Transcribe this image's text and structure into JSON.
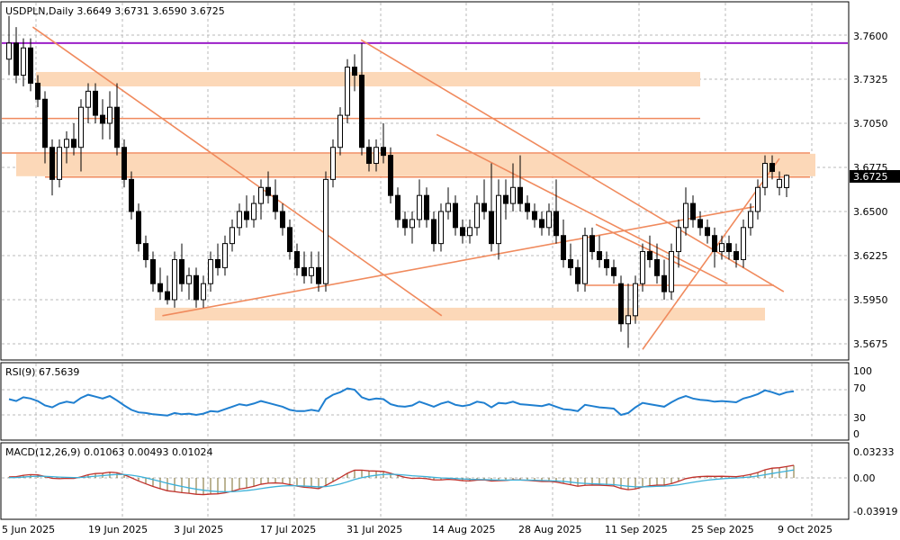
{
  "header": {
    "symbol_line": "USDPLN,Daily  3.6649 3.6731 3.6590 3.6725"
  },
  "price_axis": {
    "ticks": [
      "3.7600",
      "3.7325",
      "3.7050",
      "3.6775",
      "3.6500",
      "3.6225",
      "3.5950",
      "3.5675"
    ],
    "current_price": "3.6725"
  },
  "rsi": {
    "label": "RSI(9) 67.5639",
    "levels": [
      "100",
      "70",
      "30",
      "0"
    ]
  },
  "macd": {
    "label": "MACD(12,26,9) 0.01063 0.00493 0.01024",
    "levels": [
      "0.03233",
      "0.00",
      "-0.03919"
    ]
  },
  "date_axis": {
    "labels": [
      "5 Jun 2025",
      "19 Jun 2025",
      "3 Jul 2025",
      "17 Jul 2025",
      "31 Jul 2025",
      "14 Aug 2025",
      "28 Aug 2025",
      "11 Sep 2025",
      "25 Sep 2025",
      "9 Oct 2025"
    ]
  },
  "colors": {
    "bull": "#ffffff",
    "bear": "#000000",
    "resistance": "#9b1ec8",
    "trendline": "#f08a5d",
    "zone": "#fcd8b8",
    "rsi_line": "#1f7fd0",
    "macd_main": "#c0302a",
    "macd_signal": "#3bb0d8",
    "macd_hist": "#7a6a2a"
  },
  "chart_data": {
    "type": "candlestick",
    "instrument": "USDPLN",
    "timeframe": "Daily",
    "ylim": [
      3.5575,
      3.77
    ],
    "grid": true,
    "candles": [
      {
        "o": 3.745,
        "h": 3.772,
        "l": 3.735,
        "c": 3.755
      },
      {
        "o": 3.755,
        "h": 3.765,
        "l": 3.73,
        "c": 3.735
      },
      {
        "o": 3.735,
        "h": 3.758,
        "l": 3.728,
        "c": 3.752
      },
      {
        "o": 3.752,
        "h": 3.758,
        "l": 3.725,
        "c": 3.73
      },
      {
        "o": 3.73,
        "h": 3.735,
        "l": 3.715,
        "c": 3.72
      },
      {
        "o": 3.72,
        "h": 3.725,
        "l": 3.68,
        "c": 3.69
      },
      {
        "o": 3.69,
        "h": 3.695,
        "l": 3.66,
        "c": 3.67
      },
      {
        "o": 3.67,
        "h": 3.695,
        "l": 3.665,
        "c": 3.69
      },
      {
        "o": 3.69,
        "h": 3.7,
        "l": 3.68,
        "c": 3.695
      },
      {
        "o": 3.695,
        "h": 3.705,
        "l": 3.685,
        "c": 3.69
      },
      {
        "o": 3.69,
        "h": 3.72,
        "l": 3.675,
        "c": 3.715
      },
      {
        "o": 3.715,
        "h": 3.73,
        "l": 3.705,
        "c": 3.725
      },
      {
        "o": 3.725,
        "h": 3.73,
        "l": 3.705,
        "c": 3.71
      },
      {
        "o": 3.71,
        "h": 3.72,
        "l": 3.695,
        "c": 3.705
      },
      {
        "o": 3.705,
        "h": 3.725,
        "l": 3.695,
        "c": 3.715
      },
      {
        "o": 3.715,
        "h": 3.73,
        "l": 3.685,
        "c": 3.69
      },
      {
        "o": 3.69,
        "h": 3.695,
        "l": 3.665,
        "c": 3.67
      },
      {
        "o": 3.67,
        "h": 3.675,
        "l": 3.645,
        "c": 3.65
      },
      {
        "o": 3.65,
        "h": 3.655,
        "l": 3.625,
        "c": 3.63
      },
      {
        "o": 3.63,
        "h": 3.635,
        "l": 3.615,
        "c": 3.62
      },
      {
        "o": 3.62,
        "h": 3.625,
        "l": 3.6,
        "c": 3.605
      },
      {
        "o": 3.605,
        "h": 3.615,
        "l": 3.595,
        "c": 3.6
      },
      {
        "o": 3.6,
        "h": 3.61,
        "l": 3.592,
        "c": 3.595
      },
      {
        "o": 3.595,
        "h": 3.625,
        "l": 3.59,
        "c": 3.62
      },
      {
        "o": 3.62,
        "h": 3.63,
        "l": 3.6,
        "c": 3.605
      },
      {
        "o": 3.605,
        "h": 3.615,
        "l": 3.595,
        "c": 3.61
      },
      {
        "o": 3.61,
        "h": 3.615,
        "l": 3.59,
        "c": 3.595
      },
      {
        "o": 3.595,
        "h": 3.61,
        "l": 3.59,
        "c": 3.605
      },
      {
        "o": 3.605,
        "h": 3.625,
        "l": 3.6,
        "c": 3.62
      },
      {
        "o": 3.62,
        "h": 3.63,
        "l": 3.61,
        "c": 3.615
      },
      {
        "o": 3.615,
        "h": 3.635,
        "l": 3.61,
        "c": 3.63
      },
      {
        "o": 3.63,
        "h": 3.645,
        "l": 3.625,
        "c": 3.64
      },
      {
        "o": 3.64,
        "h": 3.655,
        "l": 3.635,
        "c": 3.65
      },
      {
        "o": 3.65,
        "h": 3.66,
        "l": 3.64,
        "c": 3.645
      },
      {
        "o": 3.645,
        "h": 3.66,
        "l": 3.64,
        "c": 3.655
      },
      {
        "o": 3.655,
        "h": 3.67,
        "l": 3.645,
        "c": 3.665
      },
      {
        "o": 3.665,
        "h": 3.675,
        "l": 3.655,
        "c": 3.66
      },
      {
        "o": 3.66,
        "h": 3.67,
        "l": 3.645,
        "c": 3.65
      },
      {
        "o": 3.65,
        "h": 3.655,
        "l": 3.635,
        "c": 3.64
      },
      {
        "o": 3.64,
        "h": 3.645,
        "l": 3.62,
        "c": 3.625
      },
      {
        "o": 3.625,
        "h": 3.63,
        "l": 3.61,
        "c": 3.615
      },
      {
        "o": 3.615,
        "h": 3.625,
        "l": 3.605,
        "c": 3.61
      },
      {
        "o": 3.61,
        "h": 3.625,
        "l": 3.605,
        "c": 3.615
      },
      {
        "o": 3.615,
        "h": 3.625,
        "l": 3.6,
        "c": 3.605
      },
      {
        "o": 3.605,
        "h": 3.675,
        "l": 3.6,
        "c": 3.67
      },
      {
        "o": 3.67,
        "h": 3.695,
        "l": 3.665,
        "c": 3.69
      },
      {
        "o": 3.69,
        "h": 3.715,
        "l": 3.685,
        "c": 3.71
      },
      {
        "o": 3.71,
        "h": 3.745,
        "l": 3.705,
        "c": 3.74
      },
      {
        "o": 3.74,
        "h": 3.748,
        "l": 3.725,
        "c": 3.735
      },
      {
        "o": 3.735,
        "h": 3.755,
        "l": 3.685,
        "c": 3.69
      },
      {
        "o": 3.69,
        "h": 3.695,
        "l": 3.675,
        "c": 3.68
      },
      {
        "o": 3.68,
        "h": 3.695,
        "l": 3.675,
        "c": 3.69
      },
      {
        "o": 3.69,
        "h": 3.705,
        "l": 3.68,
        "c": 3.685
      },
      {
        "o": 3.685,
        "h": 3.69,
        "l": 3.655,
        "c": 3.66
      },
      {
        "o": 3.66,
        "h": 3.665,
        "l": 3.64,
        "c": 3.645
      },
      {
        "o": 3.645,
        "h": 3.65,
        "l": 3.635,
        "c": 3.64
      },
      {
        "o": 3.64,
        "h": 3.65,
        "l": 3.63,
        "c": 3.645
      },
      {
        "o": 3.645,
        "h": 3.67,
        "l": 3.64,
        "c": 3.66
      },
      {
        "o": 3.66,
        "h": 3.665,
        "l": 3.64,
        "c": 3.645
      },
      {
        "o": 3.645,
        "h": 3.65,
        "l": 3.625,
        "c": 3.63
      },
      {
        "o": 3.63,
        "h": 3.655,
        "l": 3.625,
        "c": 3.65
      },
      {
        "o": 3.65,
        "h": 3.665,
        "l": 3.645,
        "c": 3.655
      },
      {
        "o": 3.655,
        "h": 3.66,
        "l": 3.635,
        "c": 3.64
      },
      {
        "o": 3.64,
        "h": 3.645,
        "l": 3.63,
        "c": 3.635
      },
      {
        "o": 3.635,
        "h": 3.645,
        "l": 3.63,
        "c": 3.64
      },
      {
        "o": 3.64,
        "h": 3.66,
        "l": 3.635,
        "c": 3.655
      },
      {
        "o": 3.655,
        "h": 3.67,
        "l": 3.645,
        "c": 3.65
      },
      {
        "o": 3.65,
        "h": 3.68,
        "l": 3.625,
        "c": 3.63
      },
      {
        "o": 3.63,
        "h": 3.67,
        "l": 3.62,
        "c": 3.66
      },
      {
        "o": 3.66,
        "h": 3.67,
        "l": 3.645,
        "c": 3.655
      },
      {
        "o": 3.655,
        "h": 3.68,
        "l": 3.65,
        "c": 3.665
      },
      {
        "o": 3.665,
        "h": 3.685,
        "l": 3.65,
        "c": 3.655
      },
      {
        "o": 3.655,
        "h": 3.66,
        "l": 3.645,
        "c": 3.65
      },
      {
        "o": 3.65,
        "h": 3.655,
        "l": 3.64,
        "c": 3.645
      },
      {
        "o": 3.645,
        "h": 3.65,
        "l": 3.635,
        "c": 3.64
      },
      {
        "o": 3.64,
        "h": 3.655,
        "l": 3.635,
        "c": 3.65
      },
      {
        "o": 3.65,
        "h": 3.67,
        "l": 3.63,
        "c": 3.635
      },
      {
        "o": 3.635,
        "h": 3.645,
        "l": 3.615,
        "c": 3.62
      },
      {
        "o": 3.62,
        "h": 3.63,
        "l": 3.61,
        "c": 3.615
      },
      {
        "o": 3.615,
        "h": 3.62,
        "l": 3.6,
        "c": 3.605
      },
      {
        "o": 3.605,
        "h": 3.64,
        "l": 3.6,
        "c": 3.635
      },
      {
        "o": 3.635,
        "h": 3.64,
        "l": 3.62,
        "c": 3.625
      },
      {
        "o": 3.625,
        "h": 3.635,
        "l": 3.615,
        "c": 3.62
      },
      {
        "o": 3.62,
        "h": 3.625,
        "l": 3.61,
        "c": 3.615
      },
      {
        "o": 3.615,
        "h": 3.62,
        "l": 3.605,
        "c": 3.61
      },
      {
        "o": 3.605,
        "h": 3.61,
        "l": 3.575,
        "c": 3.58
      },
      {
        "o": 3.58,
        "h": 3.605,
        "l": 3.565,
        "c": 3.585
      },
      {
        "o": 3.585,
        "h": 3.61,
        "l": 3.58,
        "c": 3.605
      },
      {
        "o": 3.605,
        "h": 3.63,
        "l": 3.6,
        "c": 3.625
      },
      {
        "o": 3.625,
        "h": 3.635,
        "l": 3.615,
        "c": 3.62
      },
      {
        "o": 3.62,
        "h": 3.63,
        "l": 3.605,
        "c": 3.61
      },
      {
        "o": 3.61,
        "h": 3.62,
        "l": 3.595,
        "c": 3.6
      },
      {
        "o": 3.6,
        "h": 3.63,
        "l": 3.595,
        "c": 3.625
      },
      {
        "o": 3.625,
        "h": 3.645,
        "l": 3.615,
        "c": 3.64
      },
      {
        "o": 3.64,
        "h": 3.665,
        "l": 3.635,
        "c": 3.655
      },
      {
        "o": 3.655,
        "h": 3.66,
        "l": 3.64,
        "c": 3.645
      },
      {
        "o": 3.645,
        "h": 3.65,
        "l": 3.635,
        "c": 3.64
      },
      {
        "o": 3.64,
        "h": 3.645,
        "l": 3.63,
        "c": 3.635
      },
      {
        "o": 3.635,
        "h": 3.64,
        "l": 3.615,
        "c": 3.625
      },
      {
        "o": 3.625,
        "h": 3.635,
        "l": 3.62,
        "c": 3.63
      },
      {
        "o": 3.63,
        "h": 3.635,
        "l": 3.62,
        "c": 3.625
      },
      {
        "o": 3.625,
        "h": 3.63,
        "l": 3.615,
        "c": 3.62
      },
      {
        "o": 3.62,
        "h": 3.645,
        "l": 3.615,
        "c": 3.64
      },
      {
        "o": 3.64,
        "h": 3.655,
        "l": 3.635,
        "c": 3.65
      },
      {
        "o": 3.65,
        "h": 3.67,
        "l": 3.645,
        "c": 3.665
      },
      {
        "o": 3.665,
        "h": 3.685,
        "l": 3.66,
        "c": 3.68
      },
      {
        "o": 3.68,
        "h": 3.685,
        "l": 3.67,
        "c": 3.675
      },
      {
        "o": 3.665,
        "h": 3.675,
        "l": 3.66,
        "c": 3.67
      },
      {
        "o": 3.6649,
        "h": 3.6731,
        "l": 3.659,
        "c": 3.6725
      }
    ],
    "horizontal_lines": [
      3.755,
      3.708,
      3.6865,
      3.6715,
      3.604
    ],
    "zones": [
      {
        "from": 3.737,
        "to": 3.728
      },
      {
        "from": 3.686,
        "to": 3.672
      },
      {
        "from": 3.59,
        "to": 3.582
      }
    ],
    "rsi": {
      "period": 9,
      "last": 67.5639,
      "ylim": [
        0,
        100
      ],
      "values": [
        55,
        52,
        58,
        56,
        52,
        45,
        42,
        48,
        51,
        49,
        57,
        62,
        59,
        56,
        60,
        53,
        45,
        38,
        34,
        33,
        31,
        30,
        29,
        33,
        31,
        32,
        30,
        32,
        36,
        35,
        39,
        43,
        47,
        45,
        48,
        52,
        49,
        46,
        43,
        38,
        36,
        36,
        38,
        36,
        55,
        62,
        66,
        72,
        70,
        58,
        54,
        56,
        55,
        47,
        44,
        43,
        45,
        51,
        47,
        43,
        48,
        51,
        46,
        44,
        46,
        51,
        49,
        42,
        49,
        48,
        51,
        47,
        46,
        45,
        44,
        47,
        43,
        39,
        38,
        36,
        46,
        44,
        42,
        41,
        40,
        30,
        33,
        42,
        49,
        47,
        45,
        43,
        50,
        56,
        60,
        56,
        54,
        53,
        51,
        52,
        51,
        50,
        56,
        59,
        63,
        69,
        66,
        62,
        66,
        67.56
      ]
    },
    "macd": {
      "params": [
        12,
        26,
        9
      ],
      "values": [
        0.01063,
        0.00493,
        0.01024
      ],
      "ylim": [
        -0.03919,
        0.03233
      ]
    }
  }
}
